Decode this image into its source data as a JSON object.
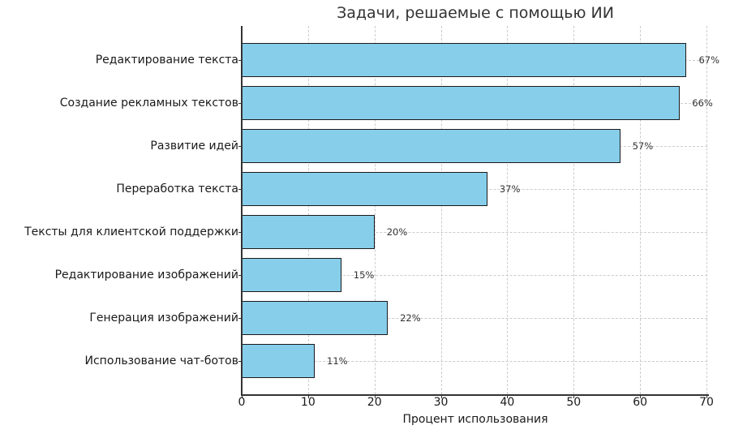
{
  "chart_data": {
    "type": "bar",
    "orientation": "horizontal",
    "title": "Задачи, решаемые с помощью ИИ",
    "xlabel": "Процент использования",
    "ylabel": "",
    "xlim": [
      0,
      70
    ],
    "xticks": [
      0,
      10,
      20,
      30,
      40,
      50,
      60,
      70
    ],
    "grid": true,
    "categories": [
      "Редактирование текста",
      "Создание рекламных текстов",
      "Развитие идей",
      "Переработка текста",
      "Тексты для клиентской поддержки",
      "Редактирование изображений",
      "Генерация изображений",
      "Использование чат-ботов"
    ],
    "values": [
      67,
      66,
      57,
      37,
      20,
      15,
      22,
      11
    ],
    "value_labels": [
      "67%",
      "66%",
      "57%",
      "37%",
      "20%",
      "15%",
      "22%",
      "11%"
    ],
    "bar_color": "#87ceeb",
    "edge_color": "#1a1a1a"
  }
}
